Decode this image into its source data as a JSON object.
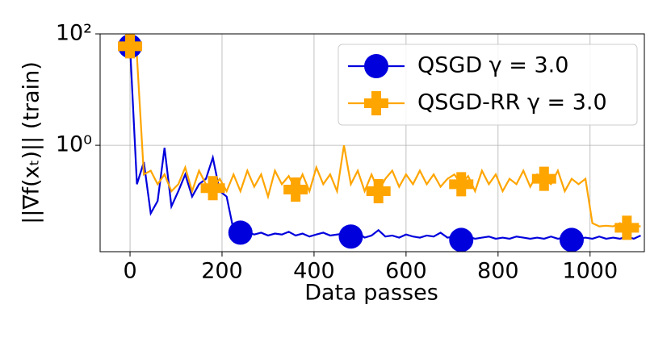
{
  "chart_data": {
    "type": "line",
    "xlabel": "Data passes",
    "ylabel": "||∇f(xₜ)|| (train)",
    "x": [
      0,
      15,
      30,
      45,
      60,
      75,
      90,
      105,
      120,
      135,
      150,
      165,
      180,
      195,
      210,
      225,
      240,
      255,
      270,
      285,
      300,
      315,
      330,
      345,
      360,
      375,
      390,
      405,
      420,
      435,
      450,
      465,
      480,
      495,
      510,
      525,
      540,
      555,
      570,
      585,
      600,
      615,
      630,
      645,
      660,
      675,
      690,
      705,
      720,
      735,
      750,
      765,
      780,
      795,
      810,
      825,
      840,
      855,
      870,
      885,
      900,
      915,
      930,
      945,
      960,
      975,
      990,
      1005,
      1020,
      1035,
      1050,
      1065,
      1080,
      1095,
      1110
    ],
    "series": [
      {
        "name": "QSGD γ = 3.0",
        "color": "#0000dd",
        "marker": "circle",
        "markevery": 16,
        "values": [
          60,
          0.2,
          0.5,
          0.06,
          0.1,
          0.9,
          0.08,
          0.15,
          0.3,
          0.12,
          0.2,
          0.25,
          0.6,
          0.15,
          0.12,
          0.03,
          0.027,
          0.028,
          0.025,
          0.027,
          0.024,
          0.026,
          0.025,
          0.028,
          0.024,
          0.026,
          0.023,
          0.025,
          0.027,
          0.024,
          0.025,
          0.026,
          0.023,
          0.027,
          0.022,
          0.024,
          0.03,
          0.023,
          0.024,
          0.022,
          0.025,
          0.023,
          0.022,
          0.024,
          0.023,
          0.027,
          0.022,
          0.023,
          0.02,
          0.023,
          0.021,
          0.022,
          0.023,
          0.021,
          0.022,
          0.021,
          0.023,
          0.022,
          0.021,
          0.022,
          0.021,
          0.023,
          0.021,
          0.022,
          0.02,
          0.021,
          0.022,
          0.021,
          0.023,
          0.021,
          0.022,
          0.021,
          0.023,
          0.021,
          0.024
        ]
      },
      {
        "name": "QSGD-RR γ = 3.0",
        "color": "#ffa500",
        "marker": "plus",
        "markevery": 12,
        "values": [
          60,
          40,
          0.3,
          0.35,
          0.2,
          0.3,
          0.15,
          0.2,
          0.4,
          0.15,
          0.35,
          0.2,
          0.17,
          0.25,
          0.15,
          0.3,
          0.15,
          0.35,
          0.18,
          0.3,
          0.12,
          0.35,
          0.2,
          0.28,
          0.16,
          0.3,
          0.15,
          0.4,
          0.2,
          0.3,
          0.15,
          1.0,
          0.2,
          0.35,
          0.15,
          0.3,
          0.15,
          0.25,
          0.35,
          0.18,
          0.3,
          0.2,
          0.35,
          0.2,
          0.3,
          0.18,
          0.25,
          0.3,
          0.2,
          0.28,
          0.15,
          0.35,
          0.2,
          0.3,
          0.15,
          0.25,
          0.2,
          0.35,
          0.18,
          0.3,
          0.25,
          0.2,
          0.35,
          0.15,
          0.25,
          0.2,
          0.25,
          0.04,
          0.035,
          0.036,
          0.035,
          0.04,
          0.033,
          0.036,
          0.035
        ]
      }
    ],
    "xlim": [
      -65,
      1118
    ],
    "xticks": [
      0,
      200,
      400,
      600,
      800,
      1000
    ],
    "ylim": [
      0.0123,
      100
    ],
    "yscale": "log",
    "yticks": [
      {
        "value": 1,
        "label": "10⁰"
      },
      {
        "value": 100,
        "label": "10²"
      }
    ],
    "grid": true,
    "legend": "upper right"
  }
}
